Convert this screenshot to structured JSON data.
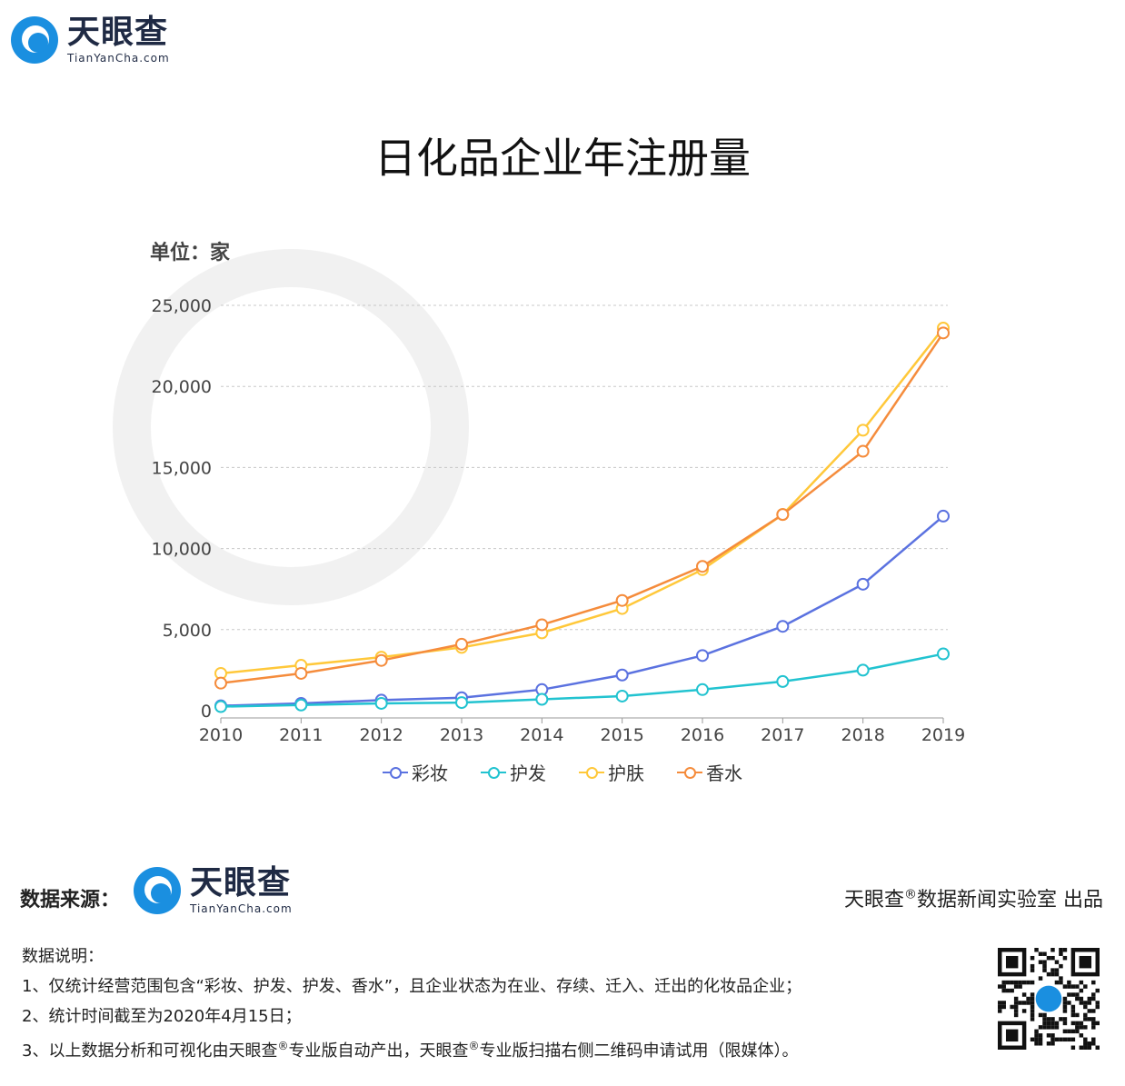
{
  "brand": {
    "name": "天眼查",
    "domain": "TianYanCha.com"
  },
  "title": "日化品企业年注册量",
  "unit": "单位：家",
  "chart_data": {
    "type": "line",
    "title": "日化品企业年注册量",
    "ylabel": "单位：家",
    "x": [
      "2010",
      "2011",
      "2012",
      "2013",
      "2014",
      "2015",
      "2016",
      "2017",
      "2018",
      "2019"
    ],
    "ylim": [
      0,
      25000
    ],
    "yticks": [
      "0",
      "5,000",
      "10,000",
      "15,000",
      "20,000",
      "25,000"
    ],
    "grid": true,
    "legend": "bottom",
    "series": [
      {
        "name": "彩妆",
        "color": "#5b72e0",
        "values": [
          300,
          450,
          650,
          800,
          1300,
          2200,
          3400,
          5200,
          7800,
          12000
        ]
      },
      {
        "name": "护发",
        "color": "#22c3d0",
        "values": [
          250,
          350,
          450,
          500,
          700,
          900,
          1300,
          1800,
          2500,
          3500
        ]
      },
      {
        "name": "护肤",
        "color": "#ffc83a",
        "values": [
          2300,
          2800,
          3300,
          3900,
          4800,
          6300,
          8700,
          12100,
          17300,
          23600
        ]
      },
      {
        "name": "香水",
        "color": "#f58c3c",
        "values": [
          1700,
          2300,
          3100,
          4100,
          5300,
          6800,
          8900,
          12100,
          16000,
          23300
        ]
      }
    ]
  },
  "footer": {
    "source_label": "数据来源：",
    "producer_a": "天眼查",
    "producer_sup": "®",
    "producer_b": "数据新闻实验室 出品",
    "notes_title": "数据说明：",
    "note1": "1、仅统计经营范围包含“彩妆、护发、护发、香水”，且企业状态为在业、存续、迁入、迁出的化妆品企业；",
    "note2": "2、统计时间截至为2020年4月15日；",
    "note3_a": "3、以上数据分析和可视化由天眼查",
    "note3_sup1": "®",
    "note3_b": "专业版自动产出，天眼查",
    "note3_sup2": "®",
    "note3_c": "专业版扫描右侧二维码申请试用（限媒体）。"
  }
}
